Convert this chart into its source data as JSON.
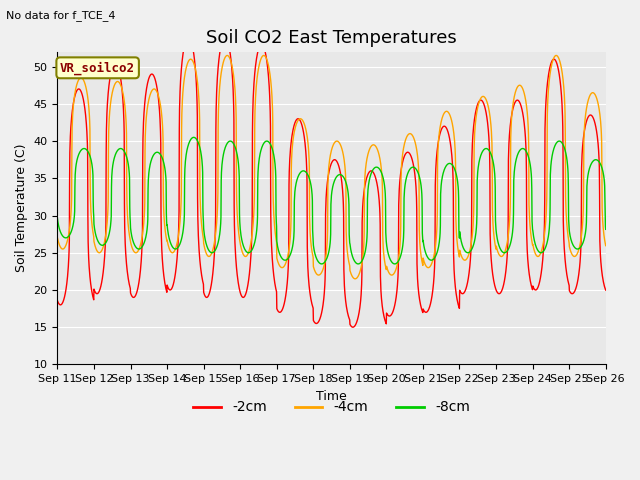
{
  "title": "Soil CO2 East Temperatures",
  "subtitle": "No data for f_TCE_4",
  "xlabel": "Time",
  "ylabel": "Soil Temperature (C)",
  "ylim": [
    10,
    52
  ],
  "yticks": [
    10,
    15,
    20,
    25,
    30,
    35,
    40,
    45,
    50
  ],
  "xtick_labels": [
    "Sep 11",
    "Sep 12",
    "Sep 13",
    "Sep 14",
    "Sep 15",
    "Sep 16",
    "Sep 17",
    "Sep 18",
    "Sep 19",
    "Sep 20",
    "Sep 21",
    "Sep 22",
    "Sep 23",
    "Sep 24",
    "Sep 25",
    "Sep 26"
  ],
  "legend_label": "VR_soilco2",
  "line_colors": {
    "-2cm": "#FF0000",
    "-4cm": "#FFA500",
    "-8cm": "#00CC00"
  },
  "background_color": "#E8E8E8",
  "title_fontsize": 13,
  "label_fontsize": 9,
  "tick_fontsize": 8,
  "n_days": 15,
  "samples_per_hour": 6,
  "base_temp": 31.5,
  "phase_peak_hour_2cm": 14.0,
  "phase_peak_hour_4cm": 15.5,
  "phase_peak_hour_8cm": 17.5,
  "amplitude_2cm": [
    14.5,
    15.5,
    15.0,
    17.0,
    17.5,
    17.0,
    13.0,
    11.0,
    10.5,
    11.0,
    12.5,
    13.0,
    13.0,
    15.5,
    12.0
  ],
  "amplitude_4cm": [
    11.5,
    11.5,
    11.0,
    13.0,
    13.5,
    13.5,
    10.0,
    9.0,
    9.0,
    9.5,
    10.5,
    11.0,
    11.5,
    13.5,
    11.0
  ],
  "amplitude_8cm": [
    6.0,
    6.5,
    6.5,
    7.5,
    7.5,
    7.5,
    6.0,
    6.0,
    6.5,
    6.5,
    6.5,
    7.0,
    7.0,
    7.5,
    6.0
  ],
  "trough_2cm": [
    18.0,
    19.5,
    19.0,
    20.0,
    19.0,
    19.0,
    17.0,
    15.5,
    15.0,
    16.5,
    17.0,
    19.5,
    19.5,
    20.0,
    19.5
  ],
  "trough_4cm": [
    25.5,
    25.0,
    25.0,
    25.0,
    24.5,
    24.5,
    23.0,
    22.0,
    21.5,
    22.0,
    23.0,
    24.0,
    24.5,
    24.5,
    24.5
  ],
  "trough_8cm": [
    27.0,
    26.0,
    25.5,
    25.5,
    25.0,
    25.0,
    24.0,
    23.5,
    23.5,
    23.5,
    24.0,
    25.0,
    25.0,
    25.0,
    25.5
  ],
  "sharpness": 3.5
}
